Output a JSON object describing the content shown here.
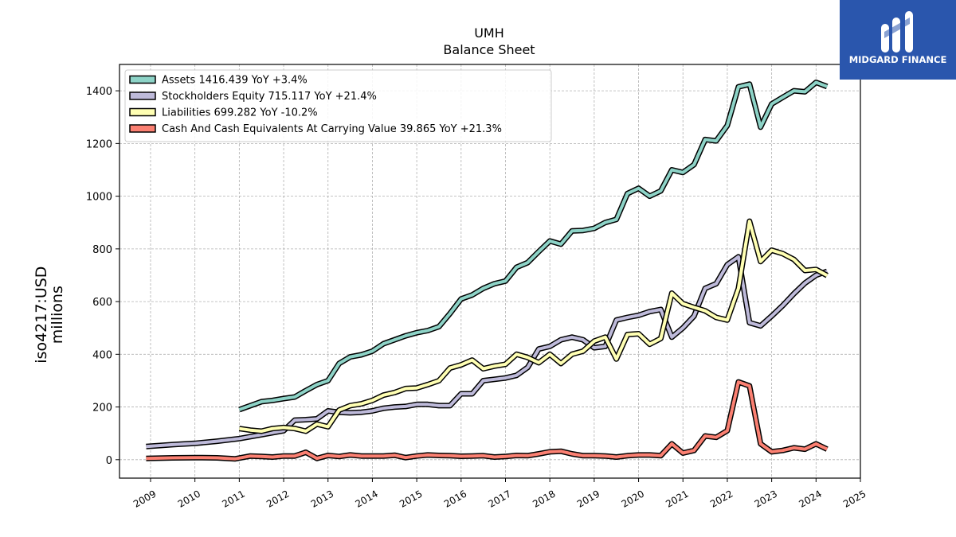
{
  "chart_data": {
    "type": "line",
    "title": "UMH",
    "subtitle": "Balance  Sheet",
    "ylabel": "iso4217:USD\nmillions",
    "xlim": [
      2008.3,
      2025.0
    ],
    "ylim": [
      -70,
      1500
    ],
    "yticks": [
      0,
      200,
      400,
      600,
      800,
      1000,
      1200,
      1400
    ],
    "xticks": [
      "2009",
      "2010",
      "2011",
      "2012",
      "2013",
      "2014",
      "2015",
      "2016",
      "2017",
      "2018",
      "2019",
      "2020",
      "2021",
      "2022",
      "2023",
      "2024",
      "2025"
    ],
    "grid": true,
    "legend_position": "top-left",
    "series": [
      {
        "name": "Assets  1416.439 YoY +3.4%",
        "color": "#8dd3c7",
        "points": [
          [
            2011.0,
            190
          ],
          [
            2011.25,
            205
          ],
          [
            2011.5,
            220
          ],
          [
            2011.75,
            225
          ],
          [
            2012.0,
            232
          ],
          [
            2012.25,
            238
          ],
          [
            2012.5,
            262
          ],
          [
            2012.75,
            285
          ],
          [
            2013.0,
            300
          ],
          [
            2013.25,
            365
          ],
          [
            2013.5,
            390
          ],
          [
            2013.75,
            398
          ],
          [
            2014.0,
            412
          ],
          [
            2014.25,
            440
          ],
          [
            2014.5,
            455
          ],
          [
            2014.75,
            470
          ],
          [
            2015.0,
            482
          ],
          [
            2015.25,
            490
          ],
          [
            2015.5,
            505
          ],
          [
            2015.75,
            555
          ],
          [
            2016.0,
            610
          ],
          [
            2016.25,
            625
          ],
          [
            2016.5,
            650
          ],
          [
            2016.75,
            668
          ],
          [
            2017.0,
            678
          ],
          [
            2017.25,
            730
          ],
          [
            2017.5,
            748
          ],
          [
            2017.75,
            790
          ],
          [
            2018.0,
            830
          ],
          [
            2018.25,
            818
          ],
          [
            2018.5,
            868
          ],
          [
            2018.75,
            870
          ],
          [
            2019.0,
            878
          ],
          [
            2019.25,
            900
          ],
          [
            2019.5,
            912
          ],
          [
            2019.75,
            1010
          ],
          [
            2020.0,
            1030
          ],
          [
            2020.25,
            1000
          ],
          [
            2020.5,
            1020
          ],
          [
            2020.75,
            1100
          ],
          [
            2021.0,
            1090
          ],
          [
            2021.25,
            1120
          ],
          [
            2021.5,
            1215
          ],
          [
            2021.75,
            1210
          ],
          [
            2022.0,
            1268
          ],
          [
            2022.25,
            1415
          ],
          [
            2022.5,
            1425
          ],
          [
            2022.75,
            1262
          ],
          [
            2023.0,
            1350
          ],
          [
            2023.25,
            1375
          ],
          [
            2023.5,
            1400
          ],
          [
            2023.75,
            1396
          ],
          [
            2024.0,
            1432
          ],
          [
            2024.25,
            1416
          ]
        ]
      },
      {
        "name": "Stockholders Equity  715.117 YoY +21.4%",
        "color": "#bebada",
        "points": [
          [
            2008.9,
            50
          ],
          [
            2009.5,
            57
          ],
          [
            2010.0,
            62
          ],
          [
            2010.5,
            70
          ],
          [
            2011.0,
            80
          ],
          [
            2011.5,
            95
          ],
          [
            2012.0,
            110
          ],
          [
            2012.25,
            150
          ],
          [
            2012.5,
            152
          ],
          [
            2012.75,
            155
          ],
          [
            2013.0,
            185
          ],
          [
            2013.25,
            180
          ],
          [
            2013.5,
            178
          ],
          [
            2013.75,
            180
          ],
          [
            2014.0,
            185
          ],
          [
            2014.25,
            195
          ],
          [
            2014.5,
            200
          ],
          [
            2014.75,
            202
          ],
          [
            2015.0,
            210
          ],
          [
            2015.25,
            210
          ],
          [
            2015.5,
            205
          ],
          [
            2015.75,
            205
          ],
          [
            2016.0,
            250
          ],
          [
            2016.25,
            250
          ],
          [
            2016.5,
            300
          ],
          [
            2016.75,
            305
          ],
          [
            2017.0,
            310
          ],
          [
            2017.25,
            320
          ],
          [
            2017.5,
            350
          ],
          [
            2017.75,
            420
          ],
          [
            2018.0,
            430
          ],
          [
            2018.25,
            455
          ],
          [
            2018.5,
            465
          ],
          [
            2018.75,
            455
          ],
          [
            2019.0,
            425
          ],
          [
            2019.25,
            430
          ],
          [
            2019.5,
            530
          ],
          [
            2019.75,
            540
          ],
          [
            2020.0,
            548
          ],
          [
            2020.25,
            562
          ],
          [
            2020.5,
            570
          ],
          [
            2020.75,
            465
          ],
          [
            2021.0,
            500
          ],
          [
            2021.25,
            545
          ],
          [
            2021.5,
            650
          ],
          [
            2021.75,
            668
          ],
          [
            2022.0,
            740
          ],
          [
            2022.25,
            770
          ],
          [
            2022.5,
            520
          ],
          [
            2022.75,
            508
          ],
          [
            2023.0,
            545
          ],
          [
            2023.25,
            585
          ],
          [
            2023.5,
            630
          ],
          [
            2023.75,
            670
          ],
          [
            2024.0,
            700
          ],
          [
            2024.25,
            715
          ]
        ]
      },
      {
        "name": "Liabilities  699.282 YoY -10.2%",
        "color": "#ffffb3",
        "points": [
          [
            2011.0,
            118
          ],
          [
            2011.25,
            112
          ],
          [
            2011.5,
            108
          ],
          [
            2011.75,
            118
          ],
          [
            2012.0,
            122
          ],
          [
            2012.25,
            118
          ],
          [
            2012.5,
            108
          ],
          [
            2012.75,
            135
          ],
          [
            2013.0,
            125
          ],
          [
            2013.25,
            188
          ],
          [
            2013.5,
            205
          ],
          [
            2013.75,
            212
          ],
          [
            2014.0,
            225
          ],
          [
            2014.25,
            245
          ],
          [
            2014.5,
            255
          ],
          [
            2014.75,
            270
          ],
          [
            2015.0,
            272
          ],
          [
            2015.25,
            285
          ],
          [
            2015.5,
            300
          ],
          [
            2015.75,
            348
          ],
          [
            2016.0,
            360
          ],
          [
            2016.25,
            378
          ],
          [
            2016.5,
            345
          ],
          [
            2016.75,
            355
          ],
          [
            2017.0,
            362
          ],
          [
            2017.25,
            400
          ],
          [
            2017.5,
            388
          ],
          [
            2017.75,
            368
          ],
          [
            2018.0,
            400
          ],
          [
            2018.25,
            365
          ],
          [
            2018.5,
            400
          ],
          [
            2018.75,
            412
          ],
          [
            2019.0,
            450
          ],
          [
            2019.25,
            465
          ],
          [
            2019.5,
            382
          ],
          [
            2019.75,
            475
          ],
          [
            2020.0,
            478
          ],
          [
            2020.25,
            438
          ],
          [
            2020.5,
            460
          ],
          [
            2020.75,
            632
          ],
          [
            2021.0,
            592
          ],
          [
            2021.25,
            578
          ],
          [
            2021.5,
            565
          ],
          [
            2021.75,
            540
          ],
          [
            2022.0,
            530
          ],
          [
            2022.25,
            650
          ],
          [
            2022.5,
            905
          ],
          [
            2022.75,
            752
          ],
          [
            2023.0,
            795
          ],
          [
            2023.25,
            782
          ],
          [
            2023.5,
            760
          ],
          [
            2023.75,
            718
          ],
          [
            2024.0,
            722
          ],
          [
            2024.25,
            699
          ]
        ]
      },
      {
        "name": "Cash And Cash Equivalents At Carrying Value  39.865 YoY +21.3%",
        "color": "#fb8072",
        "points": [
          [
            2008.9,
            5
          ],
          [
            2009.5,
            7
          ],
          [
            2010.0,
            8
          ],
          [
            2010.5,
            7
          ],
          [
            2010.9,
            3
          ],
          [
            2011.25,
            14
          ],
          [
            2011.5,
            12
          ],
          [
            2011.75,
            10
          ],
          [
            2012.0,
            14
          ],
          [
            2012.25,
            14
          ],
          [
            2012.5,
            28
          ],
          [
            2012.75,
            5
          ],
          [
            2013.0,
            16
          ],
          [
            2013.25,
            12
          ],
          [
            2013.5,
            18
          ],
          [
            2013.75,
            14
          ],
          [
            2014.0,
            14
          ],
          [
            2014.25,
            14
          ],
          [
            2014.5,
            17
          ],
          [
            2014.75,
            8
          ],
          [
            2015.0,
            14
          ],
          [
            2015.25,
            18
          ],
          [
            2015.5,
            16
          ],
          [
            2015.75,
            15
          ],
          [
            2016.0,
            13
          ],
          [
            2016.25,
            14
          ],
          [
            2016.5,
            15
          ],
          [
            2016.75,
            10
          ],
          [
            2017.0,
            12
          ],
          [
            2017.25,
            16
          ],
          [
            2017.5,
            15
          ],
          [
            2017.75,
            22
          ],
          [
            2018.0,
            30
          ],
          [
            2018.25,
            32
          ],
          [
            2018.5,
            22
          ],
          [
            2018.75,
            15
          ],
          [
            2019.0,
            15
          ],
          [
            2019.25,
            14
          ],
          [
            2019.5,
            10
          ],
          [
            2019.75,
            15
          ],
          [
            2020.0,
            18
          ],
          [
            2020.25,
            18
          ],
          [
            2020.5,
            15
          ],
          [
            2020.75,
            60
          ],
          [
            2021.0,
            25
          ],
          [
            2021.25,
            35
          ],
          [
            2021.5,
            90
          ],
          [
            2021.75,
            85
          ],
          [
            2022.0,
            110
          ],
          [
            2022.25,
            295
          ],
          [
            2022.5,
            280
          ],
          [
            2022.75,
            60
          ],
          [
            2023.0,
            30
          ],
          [
            2023.25,
            35
          ],
          [
            2023.5,
            45
          ],
          [
            2023.75,
            40
          ],
          [
            2024.0,
            60
          ],
          [
            2024.25,
            40
          ]
        ]
      }
    ]
  },
  "logo": {
    "text": "MIDGARD FINANCE",
    "bg_color": "#2a56ad"
  }
}
